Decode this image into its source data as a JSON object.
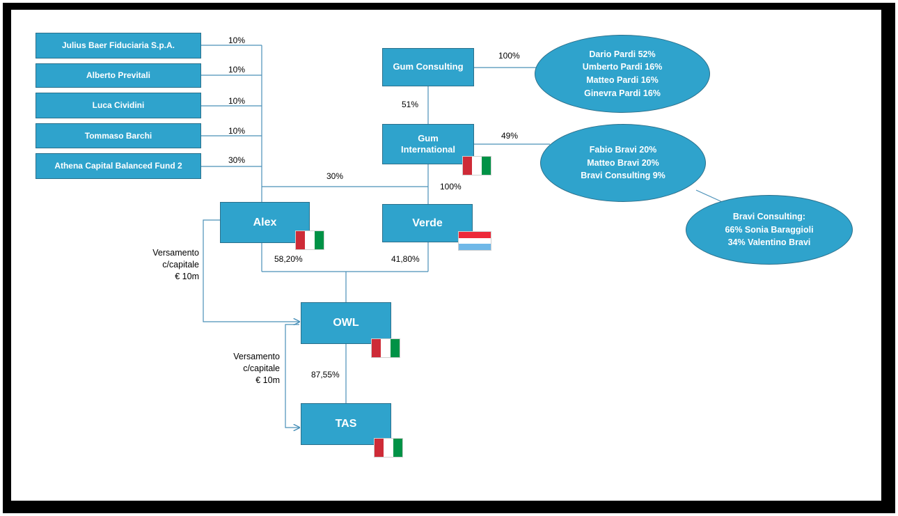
{
  "shareholders": [
    {
      "name": "Julius Baer Fiduciaria S.p.A.",
      "pct": "10%"
    },
    {
      "name": "Alberto Previtali",
      "pct": "10%"
    },
    {
      "name": "Luca Cividini",
      "pct": "10%"
    },
    {
      "name": "Tommaso Barchi",
      "pct": "10%"
    },
    {
      "name": "Athena Capital Balanced Fund 2",
      "pct": "30%"
    }
  ],
  "gum_consulting": {
    "name": "Gum Consulting",
    "pct_owners": "100%",
    "owners": [
      "Dario Pardi 52%",
      "Umberto Pardi 16%",
      "Matteo Pardi 16%",
      "Ginevra Pardi 16%"
    ],
    "pct_to_gum_international": "51%"
  },
  "gum_international": {
    "name_line1": "Gum",
    "name_line2": "International",
    "pct_owners": "49%",
    "owners": [
      "Fabio Bravi 20%",
      "Matteo Bravi 20%",
      "Bravi Consulting 9%"
    ],
    "pct_to_alex": "30%",
    "pct_to_verde": "100%"
  },
  "bravi_consulting": {
    "lines": [
      "Bravi Consulting:",
      "66% Sonia Baraggioli",
      "34% Valentino Bravi"
    ]
  },
  "alex": {
    "name": "Alex",
    "pct_to_owl": "58,20%"
  },
  "verde": {
    "name": "Verde",
    "pct_to_owl": "41,80%"
  },
  "owl": {
    "name": "OWL",
    "pct_to_tas": "87,55%"
  },
  "tas": {
    "name": "TAS"
  },
  "contribution_alex_owl": [
    "Versamento",
    "c/capitale",
    "€ 10m"
  ],
  "contribution_owl_tas": [
    "Versamento",
    "c/capitale",
    "€ 10m"
  ],
  "colors": {
    "box": "#2fa3cc",
    "line": "#4a90b8",
    "italy": [
      "#ce2b37",
      "#ffffff",
      "#009246"
    ],
    "luxembourg": [
      "#ed2939",
      "#ffffff",
      "#6fb8e8"
    ]
  }
}
